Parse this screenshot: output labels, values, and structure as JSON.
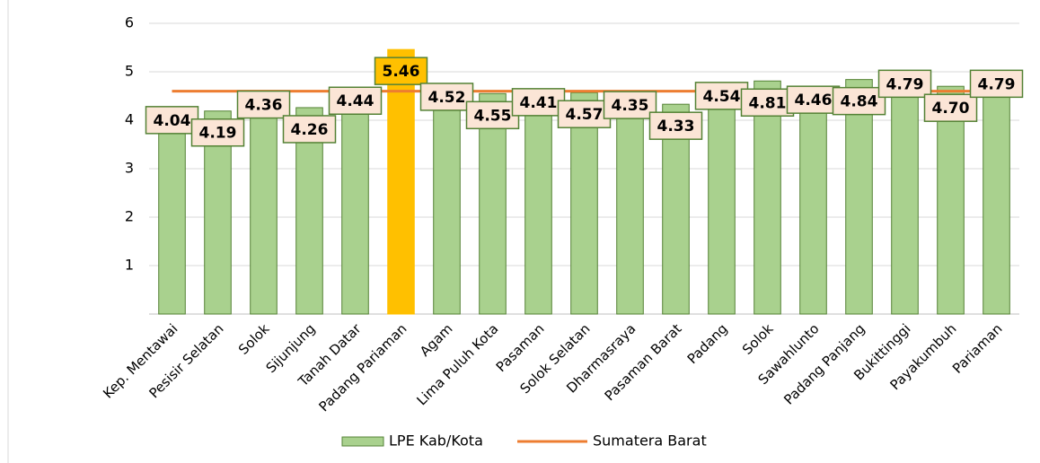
{
  "chart_data": {
    "type": "bar",
    "categories": [
      "Kep. Mentawai",
      "Pesisir Selatan",
      "Solok",
      "Sijunjung",
      "Tanah Datar",
      "Padang Pariaman",
      "Agam",
      "Lima Puluh Kota",
      "Pasaman",
      "Solok Selatan",
      "Dharmasraya",
      "Pasaman Barat",
      "Padang",
      "Solok",
      "Sawahlunto",
      "Padang Panjang",
      "Bukittinggi",
      "Payakumbuh",
      "Pariaman"
    ],
    "series": [
      {
        "name": "LPE Kab/Kota",
        "color": "#a9d18e",
        "values": [
          4.04,
          4.19,
          4.36,
          4.26,
          4.44,
          5.46,
          4.52,
          4.55,
          4.41,
          4.57,
          4.35,
          4.33,
          4.54,
          4.81,
          4.46,
          4.84,
          4.79,
          4.7,
          4.79
        ],
        "value_labels": [
          "4.04",
          "4.19",
          "4.36",
          "4.26",
          "4.44",
          "5.46",
          "4.52",
          "4.55",
          "4.41",
          "4.57",
          "4.35",
          "4.33",
          "4.54",
          "4.81",
          "4.46",
          "4.84",
          "4.79",
          "4.70",
          "4.79"
        ],
        "point_colors": [
          "#a9d18e",
          "#a9d18e",
          "#a9d18e",
          "#a9d18e",
          "#a9d18e",
          "#ffc000",
          "#a9d18e",
          "#a9d18e",
          "#a9d18e",
          "#a9d18e",
          "#a9d18e",
          "#a9d18e",
          "#a9d18e",
          "#a9d18e",
          "#a9d18e",
          "#a9d18e",
          "#a9d18e",
          "#a9d18e",
          "#a9d18e"
        ]
      },
      {
        "name": "Sumatera Barat",
        "type": "line",
        "color": "#ed7d31",
        "values": [
          4.6,
          4.6,
          4.6,
          4.6,
          4.6,
          4.6,
          4.6,
          4.6,
          4.6,
          4.6,
          4.6,
          4.6,
          4.6,
          4.6,
          4.6,
          4.6,
          4.6,
          4.6,
          4.6
        ]
      }
    ],
    "ylim": [
      0,
      6
    ],
    "yticks": [
      1,
      2,
      3,
      4,
      5,
      6
    ],
    "grid": true,
    "legend": "bottom"
  }
}
